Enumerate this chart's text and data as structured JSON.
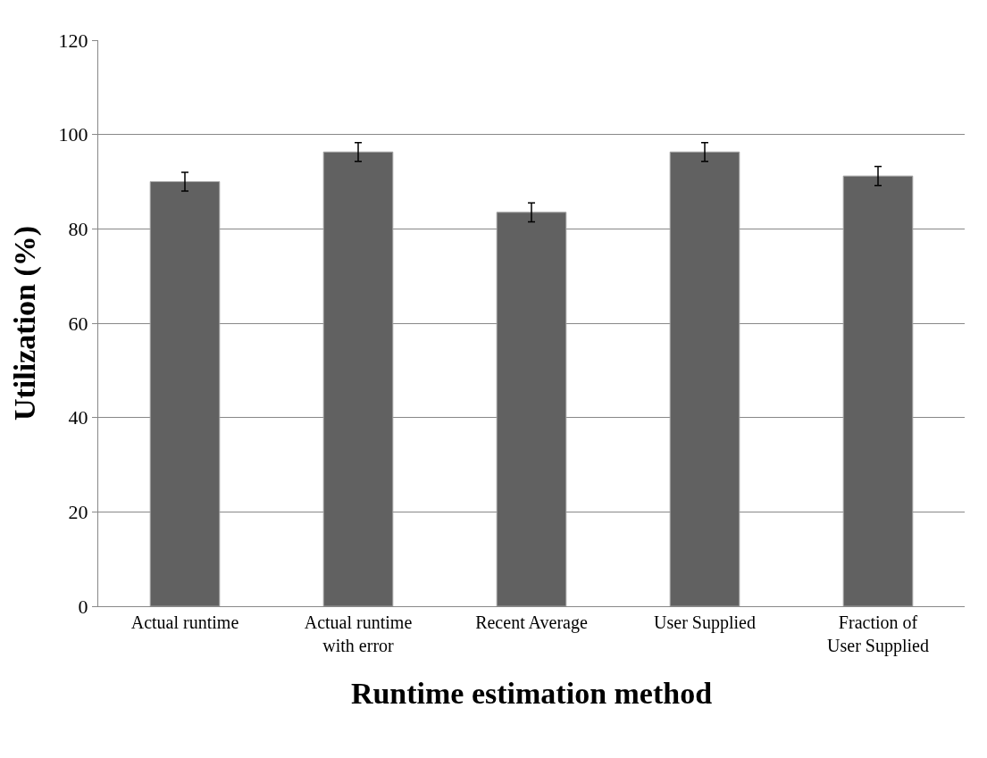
{
  "chart_data": {
    "type": "bar",
    "xlabel": "Runtime estimation method",
    "ylabel": "Utilization (%)",
    "categories": [
      "Actual runtime",
      "Actual runtime\nwith error",
      "Recent Average",
      "User Supplied",
      "Fraction of\nUser Supplied"
    ],
    "values": [
      90.0,
      96.3,
      83.5,
      96.3,
      91.2
    ],
    "errors": [
      2,
      2,
      2,
      2,
      2
    ],
    "color": "#616161",
    "ylim": [
      0,
      120
    ],
    "yticks": [
      0,
      20,
      40,
      60,
      80,
      100,
      120
    ],
    "grid": "y"
  }
}
